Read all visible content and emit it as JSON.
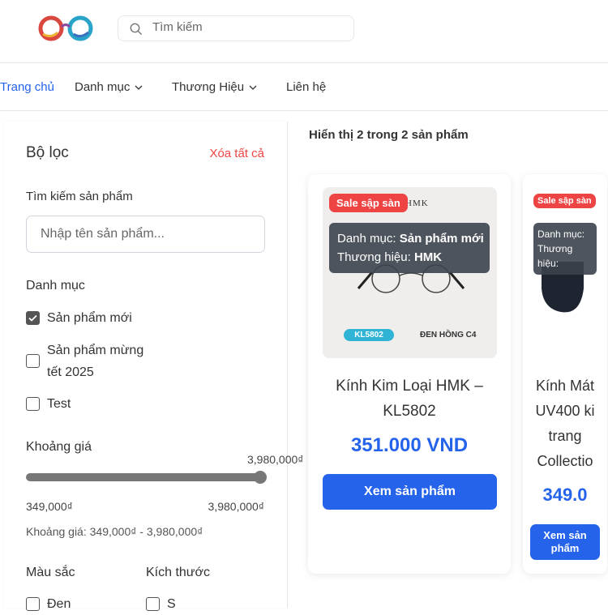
{
  "header": {
    "search_placeholder": "Tìm kiếm"
  },
  "nav": {
    "items": [
      {
        "label": "Trang chủ"
      },
      {
        "label": "Danh mục"
      },
      {
        "label": "Thương Hiệu"
      },
      {
        "label": "Liên hệ"
      }
    ]
  },
  "filter": {
    "title": "Bộ lọc",
    "clear_all": "Xóa tất cả",
    "search_label": "Tìm kiếm sản phẩm",
    "search_placeholder": "Nhập tên sản phẩm...",
    "category_label": "Danh mục",
    "categories": [
      {
        "label": "Sản phẩm mới",
        "checked": true
      },
      {
        "label": "Sản phẩm mừng tết 2025",
        "checked": false
      },
      {
        "label": "Test",
        "checked": false
      }
    ],
    "price_label": "Khoảng giá",
    "price_current": "3,980,000₫",
    "price_min": "349,000₫",
    "price_max": "3,980,000₫",
    "price_slider_percent": 100,
    "price_summary": "Khoảng giá: 349,000₫ - 3,980,000₫",
    "color_label": "Màu sắc",
    "colors": [
      {
        "label": "Đen"
      }
    ],
    "size_label": "Kích thước",
    "sizes": [
      {
        "label": "S"
      }
    ]
  },
  "results": {
    "summary": "Hiển thị 2 trong 2 sản phẩm"
  },
  "products": [
    {
      "badge": "Sale sập sàn",
      "category_label": "Danh mục:",
      "category": "Sản phẩm mới",
      "brand_label": "Thương hiệu:",
      "brand": "HMK",
      "image_brand": "HMK",
      "image_code": "KL5802",
      "image_color": "ĐEN HỒNG C4",
      "title_lines": [
        "Kính Kim Loại HMK –",
        "KL5802"
      ],
      "price": "351.000 VND",
      "button": "Xem sản phẩm"
    },
    {
      "badge": "Sale sập sàn",
      "category_label": "Danh mục:",
      "brand_label": "Thương hiệu:",
      "title_lines": [
        "Kính Mát",
        "UV400 ki",
        "trang",
        "Collectio"
      ],
      "price": "349.0",
      "button": "Xem sản phẩm"
    }
  ],
  "colors": {
    "accent": "#2563eb",
    "sale": "#ef4444"
  }
}
